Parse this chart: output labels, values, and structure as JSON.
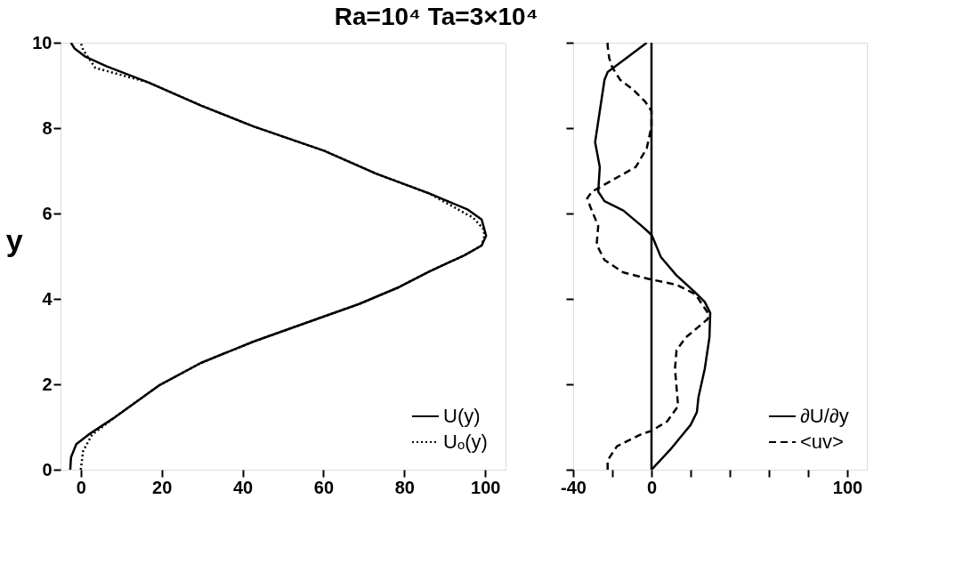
{
  "chart_data": [
    {
      "type": "line",
      "title": "Ra=10⁴  Ta=3×10⁴",
      "ylabel": "y",
      "xlim": [
        -5,
        105
      ],
      "ylim": [
        0,
        10
      ],
      "xticks": [
        0,
        20,
        40,
        60,
        80,
        100
      ],
      "yticks": [
        0,
        2,
        4,
        6,
        8,
        10
      ],
      "grid": false,
      "legend": "bottom right",
      "series": [
        {
          "name": "U(y)",
          "color": "#000000",
          "line_style": "solid",
          "x": [
            -2.6,
            -2.4,
            -1.1,
            1.9,
            8,
            19.3,
            29.7,
            42.7,
            57.5,
            68.8,
            78.3,
            86.1,
            94.8,
            99.1,
            100.2,
            99.1,
            95.7,
            86.1,
            73.1,
            60.1,
            42.7,
            29.7,
            16.7,
            6.3,
            1.0,
            -1.6,
            -2.4
          ],
          "values": [
            0,
            0.29,
            0.6,
            0.82,
            1.2,
            1.97,
            2.5,
            3,
            3.5,
            3.88,
            4.26,
            4.64,
            5.02,
            5.25,
            5.48,
            5.86,
            6.09,
            6.47,
            6.93,
            7.47,
            8.04,
            8.53,
            9.07,
            9.45,
            9.68,
            9.87,
            10
          ]
        },
        {
          "name": "Uₒ(y)",
          "color": "#000000",
          "line_style": "dotted",
          "x": [
            0,
            0.6,
            2.8,
            8,
            19.3,
            29.7,
            42.7,
            57.5,
            68.8,
            78.3,
            86.1,
            94.8,
            99.1,
            99.8,
            99.6,
            97,
            86.1,
            73.1,
            60.1,
            42.7,
            29.7,
            16.7,
            3.6,
            0.6,
            0
          ],
          "values": [
            0,
            0.44,
            0.82,
            1.2,
            1.97,
            2.5,
            3,
            3.5,
            3.88,
            4.26,
            4.64,
            5.02,
            5.25,
            5.48,
            5.63,
            5.9,
            6.47,
            6.93,
            7.47,
            8.04,
            8.53,
            9.07,
            9.41,
            9.83,
            10
          ]
        }
      ]
    },
    {
      "type": "line",
      "xlim": [
        -40,
        110
      ],
      "ylim": [
        0,
        10
      ],
      "xticks": [
        -40,
        {
          "value": -20,
          "label": null
        },
        0,
        {
          "value": 20,
          "label": null
        },
        {
          "value": 40,
          "label": null
        },
        {
          "value": 60,
          "label": null
        },
        {
          "value": 80,
          "label": null
        },
        100
      ],
      "yticks": [
        0,
        2,
        4,
        6,
        8,
        10
      ],
      "tick_labels": "x",
      "grid": false,
      "legend": "bottom right",
      "ref_lines": [
        {
          "axis": "x",
          "value": 0,
          "color": "#000000"
        }
      ],
      "series": [
        {
          "name": "∂U/∂y",
          "color": "#000000",
          "line_style": "solid",
          "x": [
            0,
            9.6,
            20,
            23.2,
            24,
            27.2,
            29.6,
            30,
            27.2,
            22.4,
            12.8,
            4.8,
            0.8,
            0,
            -4.8,
            -14.4,
            -24,
            -27.2,
            -26.4,
            -28.8,
            -26.4,
            -24,
            -22.4,
            -19.2,
            -12.8,
            -2.4
          ],
          "values": [
            0,
            0.47,
            1.05,
            1.35,
            1.7,
            2.36,
            3.1,
            3.67,
            3.93,
            4.15,
            4.55,
            4.98,
            5.42,
            5.5,
            5.7,
            6.07,
            6.29,
            6.51,
            7.09,
            7.67,
            8.4,
            9.13,
            9.31,
            9.42,
            9.64,
            10
          ]
        },
        {
          "name": "<uv>",
          "color": "#000000",
          "line_style": "dashed",
          "x": [
            -22.4,
            -22.4,
            -17.6,
            -4.8,
            0,
            8,
            13.6,
            12,
            12.8,
            17.6,
            28.8,
            28.8,
            22.4,
            12.8,
            -1.6,
            -14.4,
            -24,
            -28,
            -27.2,
            -31.2,
            -32.8,
            -30.4,
            -20.8,
            -8,
            -2.4,
            0,
            0,
            -3.2,
            -9.6,
            -16,
            -20,
            -21.6,
            -22.4,
            -22.4
          ],
          "values": [
            0,
            0.22,
            0.55,
            0.84,
            0.91,
            1.13,
            1.49,
            2.36,
            2.8,
            3.1,
            3.53,
            3.67,
            4.11,
            4.33,
            4.47,
            4.62,
            4.91,
            5.27,
            5.71,
            6.15,
            6.36,
            6.51,
            6.76,
            7.09,
            7.53,
            8.04,
            8.4,
            8.62,
            8.91,
            9.13,
            9.42,
            9.64,
            9.93,
            10
          ]
        }
      ]
    }
  ]
}
